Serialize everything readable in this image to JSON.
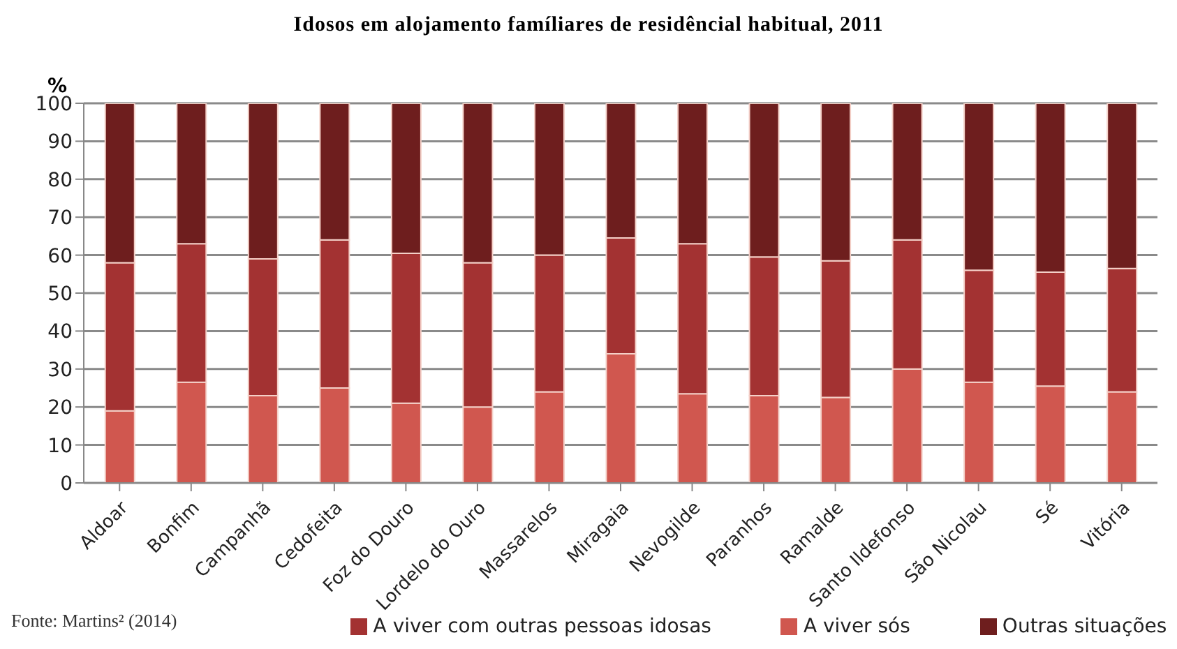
{
  "chart_data": {
    "type": "bar",
    "title": "Idosos em alojamento famíliares de residêncial habitual, 2011",
    "ylabel": "%",
    "categories": [
      "Aldoar",
      "Bonfim",
      "Campanhã",
      "Cedofeita",
      "Foz do Douro",
      "Lordelo do Ouro",
      "Massarelos",
      "Miragaia",
      "Nevogilde",
      "Paranhos",
      "Ramalde",
      "Santo Ildefonso",
      "São Nicolau",
      "Sé",
      "Vitória"
    ],
    "series": [
      {
        "name": "A viver sós",
        "color": "#d0574f",
        "values": [
          19,
          26.5,
          23,
          25,
          21,
          20,
          24,
          34,
          23.5,
          23,
          22.5,
          30,
          26.5,
          25.5,
          24
        ]
      },
      {
        "name": "A viver com outras pessoas idosas",
        "color": "#a33232",
        "values": [
          39,
          36.5,
          36,
          39,
          39.5,
          38,
          36,
          30.5,
          39.5,
          36.5,
          36,
          34,
          29.5,
          30,
          32.5
        ]
      },
      {
        "name": "Outras situações",
        "color": "#6e1e1e",
        "values": [
          42,
          37,
          41,
          36,
          39.5,
          42,
          40,
          35.5,
          37,
          40.5,
          41.5,
          36,
          44,
          44.5,
          43.5
        ]
      }
    ],
    "stacked": true,
    "ylim": [
      0,
      100
    ],
    "yticks": [
      0,
      10,
      20,
      30,
      40,
      50,
      60,
      70,
      80,
      90,
      100
    ],
    "grid": "y",
    "legend": "bottom",
    "annotations": [
      "Fonte: Martins² (2014)"
    ]
  }
}
